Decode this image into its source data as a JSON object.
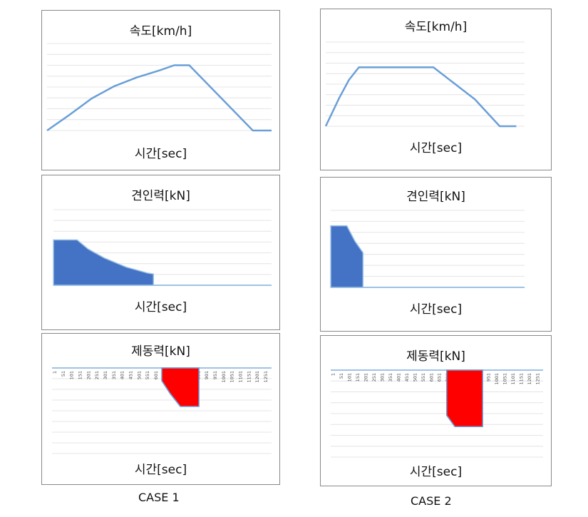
{
  "case_labels": [
    "CASE 1",
    "CASE 2"
  ],
  "chart_data": [
    {
      "id": "c1-speed",
      "type": "line",
      "title": "속도[km/h]",
      "xlabel": "시간[sec]",
      "ylim": [
        0,
        100
      ],
      "xlim": [
        0,
        1200
      ],
      "series": [
        {
          "color": "#6a9fd8",
          "x": [
            0,
            120,
            240,
            360,
            480,
            600,
            680,
            760,
            1100,
            1200
          ],
          "y": [
            0,
            18,
            37,
            51,
            61,
            69,
            75,
            75,
            0,
            0
          ]
        }
      ]
    },
    {
      "id": "c2-speed",
      "type": "line",
      "title": "속도[km/h]",
      "xlabel": "시간[sec]",
      "ylim": [
        0,
        100
      ],
      "xlim": [
        0,
        1200
      ],
      "series": [
        {
          "color": "#6a9fd8",
          "x": [
            0,
            80,
            140,
            200,
            650,
            900,
            1050,
            1150
          ],
          "y": [
            0,
            33,
            55,
            70,
            70,
            32,
            0,
            0
          ]
        }
      ]
    },
    {
      "id": "c1-traction",
      "type": "area",
      "title": "견인력[kN]",
      "xlabel": "시간[sec]",
      "ylim": [
        0,
        100
      ],
      "xlim": [
        0,
        1200
      ],
      "series": [
        {
          "color": "#4472c4",
          "edge": "#9dc3e6",
          "x": [
            0,
            130,
            190,
            280,
            400,
            520,
            550,
            1050
          ],
          "y": [
            60,
            60,
            48,
            36,
            24,
            16,
            15,
            0
          ]
        }
      ]
    },
    {
      "id": "c2-traction",
      "type": "area",
      "title": "견인력[kN]",
      "xlabel": "시간[sec]",
      "ylim": [
        0,
        100
      ],
      "xlim": [
        0,
        1200
      ],
      "series": [
        {
          "color": "#4472c4",
          "edge": "#9dc3e6",
          "x": [
            0,
            100,
            150,
            200,
            1050
          ],
          "y": [
            80,
            80,
            60,
            45,
            0
          ]
        }
      ]
    },
    {
      "id": "c1-brake",
      "type": "area",
      "title": "제동력[kN]",
      "xlabel": "시간[sec]",
      "ylim": [
        -100,
        0
      ],
      "xlim": [
        0,
        1300
      ],
      "tick_labels": [
        "1",
        "51",
        "101",
        "151",
        "201",
        "251",
        "301",
        "351",
        "401",
        "451",
        "501",
        "551",
        "601",
        "651",
        "701",
        "751",
        "801",
        "851",
        "901",
        "951",
        "1001",
        "1051",
        "1101",
        "1151",
        "1201",
        "1251"
      ],
      "series": [
        {
          "color": "#ff0000",
          "edge": "#6a9fd8",
          "x": [
            650,
            700,
            760,
            870,
            870
          ],
          "y": [
            -15,
            -30,
            -45,
            -45,
            0
          ]
        }
      ]
    },
    {
      "id": "c2-brake",
      "type": "area",
      "title": "제동력[kN]",
      "xlabel": "시간[sec]",
      "ylim": [
        -100,
        0
      ],
      "xlim": [
        0,
        1300
      ],
      "tick_labels": [
        "1",
        "51",
        "101",
        "151",
        "201",
        "251",
        "301",
        "351",
        "401",
        "451",
        "501",
        "551",
        "601",
        "651",
        "701",
        "751",
        "801",
        "851",
        "901",
        "951",
        "1001",
        "1051",
        "1101",
        "1151",
        "1201",
        "1251"
      ],
      "series": [
        {
          "color": "#ff0000",
          "edge": "#6a9fd8",
          "x": [
            710,
            760,
            930,
            930
          ],
          "y": [
            -52,
            -65,
            -65,
            0
          ]
        }
      ]
    }
  ]
}
